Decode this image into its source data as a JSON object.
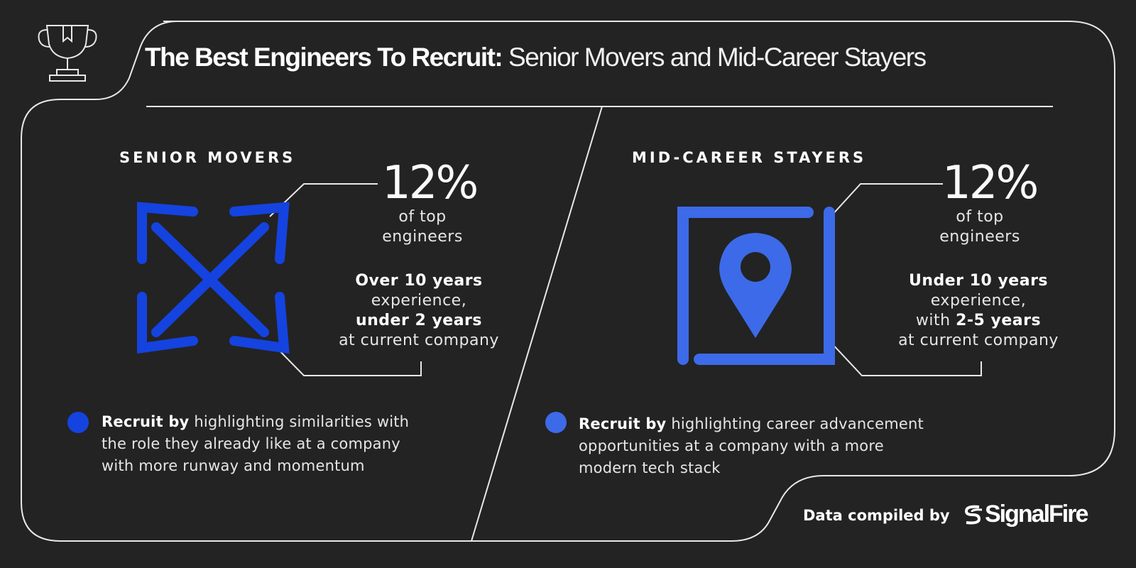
{
  "header": {
    "title_bold": "The Best Engineers To Recruit:",
    "title_light": " Senior Movers and Mid-Career Stayers"
  },
  "left": {
    "heading": "SENIOR MOVERS",
    "percent": "12%",
    "percent_line1": "of top",
    "percent_line2": "engineers",
    "detail_bold1": "Over 10 years",
    "detail_line2": "experience,",
    "detail_bold3": "under 2 years",
    "detail_line4": "at current company",
    "recruit_bold": "Recruit by",
    "recruit_text": " highlighting similarities with the role they already like at a company with more runway and momentum",
    "icon": "arrows-expand-icon"
  },
  "right": {
    "heading": "MID-CAREER STAYERS",
    "percent": "12%",
    "percent_line1": "of top",
    "percent_line2": "engineers",
    "detail_bold1": "Under 10 years",
    "detail_line2": "experience,",
    "detail_line3_prefix": "with ",
    "detail_bold3": "2-5 years",
    "detail_line4": "at current company",
    "recruit_bold": "Recruit by",
    "recruit_text": " highlighting career advancement opportunities at a company with a more modern tech stack",
    "icon": "location-pin-in-frame-icon"
  },
  "footer": {
    "label": "Data compiled by",
    "brand": "SignalFire"
  },
  "colors": {
    "background": "#232323",
    "left_accent": "#1443e0",
    "right_accent": "#3d6ae8",
    "line": "#e8e8e8"
  }
}
